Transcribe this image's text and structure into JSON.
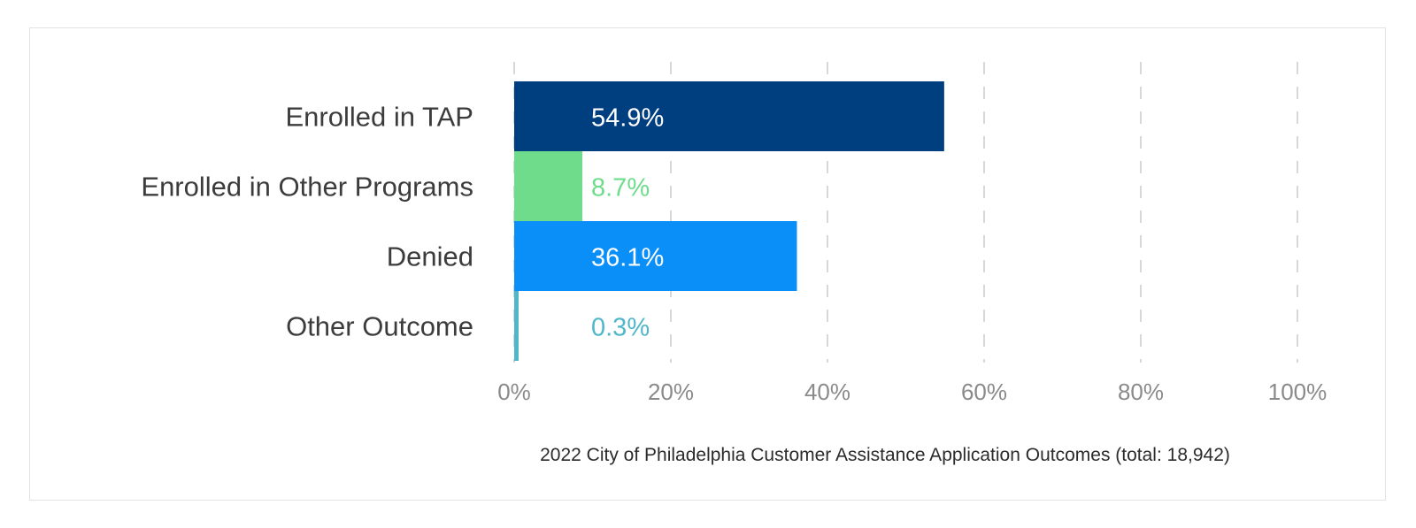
{
  "chart_data": {
    "type": "bar",
    "orientation": "horizontal",
    "categories": [
      "Enrolled in TAP",
      "Enrolled in Other Programs",
      "Denied",
      "Other Outcome"
    ],
    "values": [
      54.9,
      8.7,
      36.1,
      0.3
    ],
    "value_labels": [
      "54.9%",
      "8.7%",
      "36.1%",
      "0.3%"
    ],
    "bar_colors": [
      "#003f7f",
      "#6fdc8c",
      "#0a8ef8",
      "#4fb7c9"
    ],
    "label_colors": [
      "#ffffff",
      "#6fdc8c",
      "#ffffff",
      "#4fb7c9"
    ],
    "xlim": [
      0,
      100
    ],
    "xticks": [
      0,
      20,
      40,
      60,
      80,
      100
    ],
    "xtick_labels": [
      "0%",
      "20%",
      "40%",
      "60%",
      "80%",
      "100%"
    ],
    "grid": true,
    "title": "",
    "xlabel": "2022 City of Philadelphia Customer Assistance Application Outcomes (total: 18,942)",
    "ylabel": ""
  }
}
